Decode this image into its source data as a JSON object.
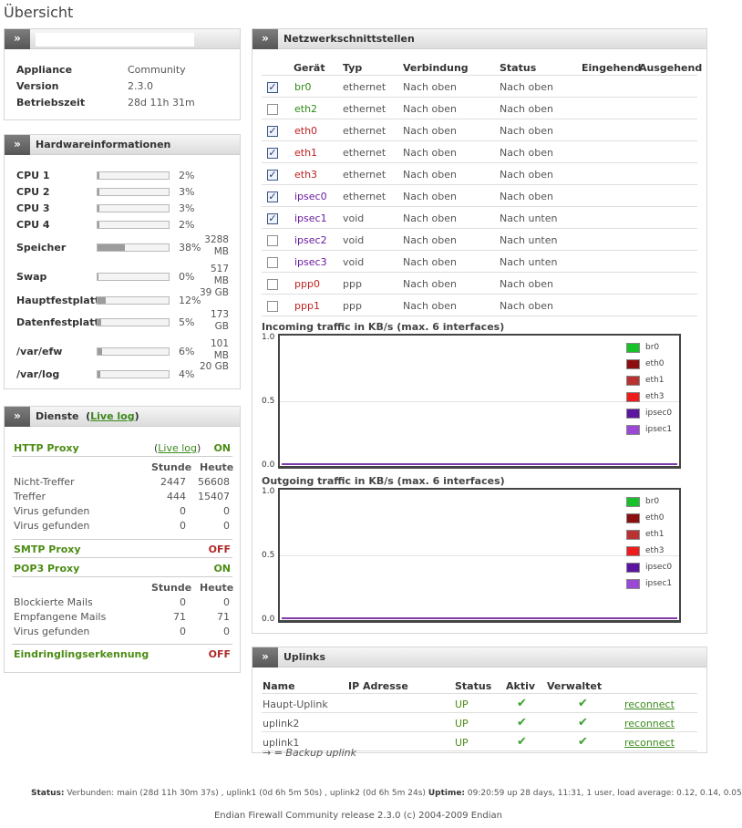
{
  "page": {
    "title": "Übersicht"
  },
  "appliance": {
    "rows": [
      {
        "label": "Appliance",
        "value": "Community"
      },
      {
        "label": "Version",
        "value": "2.3.0"
      },
      {
        "label": "Betriebszeit",
        "value": "28d 11h 31m"
      }
    ]
  },
  "hardware": {
    "title": "Hardwareinformationen",
    "rows": [
      {
        "label": "CPU 1",
        "percent": 2,
        "pct_text": "2%",
        "size": ""
      },
      {
        "label": "CPU 2",
        "percent": 3,
        "pct_text": "3%",
        "size": ""
      },
      {
        "label": "CPU 3",
        "percent": 3,
        "pct_text": "3%",
        "size": ""
      },
      {
        "label": "CPU 4",
        "percent": 2,
        "pct_text": "2%",
        "size": ""
      },
      {
        "label": "Speicher",
        "percent": 38,
        "pct_text": "38%",
        "size": "3288 MB"
      },
      {
        "label": "Swap",
        "percent": 0,
        "pct_text": "0%",
        "size": "517 MB"
      },
      {
        "label": "Hauptfestplatte",
        "percent": 12,
        "pct_text": "12%",
        "size": "39 GB"
      },
      {
        "label": "Datenfestplatte",
        "percent": 5,
        "pct_text": "5%",
        "size": "173 GB"
      },
      {
        "label": "/var/efw",
        "percent": 6,
        "pct_text": "6%",
        "size": "101 MB"
      },
      {
        "label": "/var/log",
        "percent": 4,
        "pct_text": "4%",
        "size": "20 GB"
      }
    ]
  },
  "services": {
    "title": "Dienste",
    "live_log": "Live log",
    "http_proxy": {
      "name": "HTTP Proxy",
      "live_log": "Live log",
      "state": "ON"
    },
    "http_stats": {
      "col1": "Stunde",
      "col2": "Heute",
      "rows": [
        {
          "label": "Nicht-Treffer",
          "a": "2447",
          "b": "56608"
        },
        {
          "label": "Treffer",
          "a": "444",
          "b": "15407"
        },
        {
          "label": "Virus gefunden",
          "a": "0",
          "b": "0"
        },
        {
          "label": "Virus gefunden",
          "a": "0",
          "b": "0"
        }
      ]
    },
    "smtp_proxy": {
      "name": "SMTP Proxy",
      "state": "OFF"
    },
    "pop3_proxy": {
      "name": "POP3 Proxy",
      "state": "ON"
    },
    "pop3_stats": {
      "col1": "Stunde",
      "col2": "Heute",
      "rows": [
        {
          "label": "Blockierte Mails",
          "a": "0",
          "b": "0"
        },
        {
          "label": "Empfangene Mails",
          "a": "71",
          "b": "71"
        },
        {
          "label": "Virus gefunden",
          "a": "0",
          "b": "0"
        }
      ]
    },
    "ids": {
      "name": "Eindringlingserkennung",
      "state": "OFF"
    },
    "colors": {
      "on": "#4c8c14",
      "off": "#b02a2a"
    }
  },
  "network": {
    "title": "Netzwerkschnittstellen",
    "headers": [
      "Gerät",
      "Typ",
      "Verbindung",
      "Status",
      "Eingehend",
      "Ausgehend"
    ],
    "rows": [
      {
        "checked": true,
        "name": "br0",
        "color": "#2e8b1a",
        "type": "ethernet",
        "conn": "Nach oben",
        "status": "Nach oben"
      },
      {
        "checked": false,
        "name": "eth2",
        "color": "#2e8b1a",
        "type": "ethernet",
        "conn": "Nach oben",
        "status": "Nach oben"
      },
      {
        "checked": true,
        "name": "eth0",
        "color": "#c01f1f",
        "type": "ethernet",
        "conn": "Nach oben",
        "status": "Nach oben"
      },
      {
        "checked": true,
        "name": "eth1",
        "color": "#c01f1f",
        "type": "ethernet",
        "conn": "Nach oben",
        "status": "Nach oben"
      },
      {
        "checked": true,
        "name": "eth3",
        "color": "#c01f1f",
        "type": "ethernet",
        "conn": "Nach oben",
        "status": "Nach oben"
      },
      {
        "checked": true,
        "name": "ipsec0",
        "color": "#6a1aa0",
        "type": "ethernet",
        "conn": "Nach oben",
        "status": "Nach oben"
      },
      {
        "checked": true,
        "name": "ipsec1",
        "color": "#6a1aa0",
        "type": "void",
        "conn": "Nach oben",
        "status": "Nach unten"
      },
      {
        "checked": false,
        "name": "ipsec2",
        "color": "#6a1aa0",
        "type": "void",
        "conn": "Nach oben",
        "status": "Nach unten"
      },
      {
        "checked": false,
        "name": "ipsec3",
        "color": "#6a1aa0",
        "type": "void",
        "conn": "Nach oben",
        "status": "Nach unten"
      },
      {
        "checked": false,
        "name": "ppp0",
        "color": "#c01f1f",
        "type": "ppp",
        "conn": "Nach oben",
        "status": "Nach oben"
      },
      {
        "checked": false,
        "name": "ppp1",
        "color": "#c01f1f",
        "type": "ppp",
        "conn": "Nach oben",
        "status": "Nach oben"
      }
    ]
  },
  "incoming_graph": {
    "title": "Incoming traffic in KB/s (max. 6 interfaces)",
    "y_labels": [
      "1.0",
      "0.5",
      "0.0"
    ]
  },
  "outgoing_graph": {
    "title": "Outgoing traffic in KB/s (max. 6 interfaces)",
    "y_labels": [
      "1.0",
      "0.5",
      "0.0"
    ]
  },
  "legend": [
    {
      "name": "br0",
      "color": "#18c02a"
    },
    {
      "name": "eth0",
      "color": "#8c0e0e"
    },
    {
      "name": "eth1",
      "color": "#b83232"
    },
    {
      "name": "eth3",
      "color": "#ee1c1c"
    },
    {
      "name": "ipsec0",
      "color": "#5c159e"
    },
    {
      "name": "ipsec1",
      "color": "#9a48d6"
    }
  ],
  "uplinks": {
    "title": "Uplinks",
    "headers": [
      "Name",
      "IP Adresse",
      "Status",
      "Aktiv",
      "Verwaltet"
    ],
    "rows": [
      {
        "name": "Haupt-Uplink",
        "ip": "",
        "status": "UP",
        "action": "reconnect"
      },
      {
        "name": "uplink2",
        "ip": "",
        "status": "UP",
        "action": "reconnect"
      },
      {
        "name": "uplink1",
        "ip": "",
        "status": "UP",
        "action": "reconnect"
      }
    ],
    "backup_note": "→ = Backup uplink"
  },
  "footer": {
    "status_label": "Status:",
    "status_text": "Verbunden: main (28d 11h 30m 37s) , uplink1 (0d 6h 5m 50s) , uplink2 (0d 6h 5m 24s)",
    "uptime_label": "Uptime:",
    "uptime_text": "09:20:59 up 28 days, 11:31, 1 user, load average: 0.12, 0.14, 0.05",
    "copyright": "Endian Firewall Community release 2.3.0 (c) 2004-2009 Endian"
  }
}
